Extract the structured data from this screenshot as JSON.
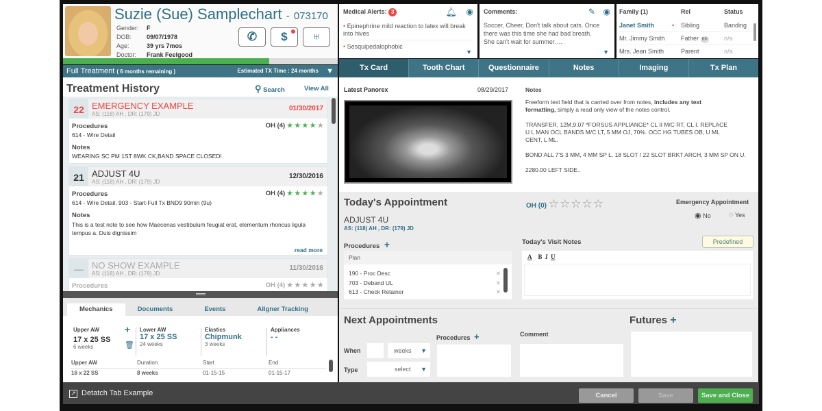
{
  "patient": {
    "name": "Suzie (Sue) Samplechart",
    "id_sep": "-",
    "id": "073170",
    "fields": [
      {
        "label": "Gender:",
        "value": "F"
      },
      {
        "label": "DOB:",
        "value": "09/07/1978"
      },
      {
        "label": "Age:",
        "value": "39 yrs 7mos"
      },
      {
        "label": "Doctor:",
        "value": "Frank  Feelgood"
      }
    ]
  },
  "treatment": {
    "title": "Full Treatment",
    "remaining": "( 6 months remaining )",
    "estimate": "Estimated TX Time : 24 months",
    "progress_pct": 75
  },
  "alerts": {
    "title": "Medical Alerts:",
    "count": "3",
    "items": [
      "Epinephrine mild reaction to  latex will break into hives",
      "Sesquipedalophobic"
    ]
  },
  "comments": {
    "title": "Comments:",
    "text": "Soccer, Cheer, Don't talk about cats. Once there was this time she had bad breath. She can't wait for summer…."
  },
  "family": {
    "headers": [
      "Family (1)",
      "Rel",
      "Status"
    ],
    "rows": [
      {
        "name": "Janet Smith",
        "rel": "Sibling",
        "status": "Banding"
      },
      {
        "name": "Mr. Jimmy Smith",
        "rel": "Father",
        "badge": "RP",
        "status": "n/a"
      },
      {
        "name": "Mrs. Jean Smith",
        "rel": "Parent",
        "status": "n/a"
      }
    ]
  },
  "tabs": [
    "Tx Card",
    "Tooth Chart",
    "Questionnaire",
    "Notes",
    "Imaging",
    "Tx Plan"
  ],
  "history": {
    "title": "Treatment History",
    "search": "Search",
    "view_all": "View All",
    "procedures_label": "Procedures",
    "notes_label": "Notes",
    "read_more": "read more",
    "cards": [
      {
        "num": "22",
        "title": "EMERGENCY EXAMPLE",
        "sub": "AS: (118) AH , DR: (179) JD",
        "date": "01/30/2017",
        "oh": "OH (4)",
        "stars": 4,
        "procedures": "614 - Wire Detail",
        "notes": "WEARING SC PM 1ST 8WK CK,BAND SPACE CLOSED!"
      },
      {
        "num": "21",
        "title": "ADJUST 4U",
        "sub": "AS: (118) AH , DR: (179) JD",
        "date": "12/30/2016",
        "oh": "OH (4)",
        "stars": 4,
        "procedures": "614 - Wire Detail, 903 - Start-Full Tx  BND9 90min (9u)",
        "notes": "This is a test note to see how Maecenas vestibulum feugiat erat, elementum rhoncus ligula tempus a. Duis dignissim"
      },
      {
        "num": "—",
        "title": "NO SHOW EXAMPLE",
        "sub": "AS: (118) AH , DR: (179) JD",
        "date": "11/30/2016",
        "oh": "OH (4)",
        "stars": 0
      }
    ]
  },
  "mechanics": {
    "tabs": [
      "Mechanics",
      "Documents",
      "Events",
      "Aligner Tracking"
    ],
    "upper": {
      "label": "Upper AW",
      "value": "17 x 25 SS",
      "dur": "6 weeks"
    },
    "lower": {
      "label": "Lower AW",
      "value": "17 x 25 SS",
      "dur": "24 weeks"
    },
    "elastics": {
      "label": "Elastics",
      "value": "Chipmunk",
      "dur": "3 weeks"
    },
    "appliances": {
      "label": "Appliances",
      "value": "- -"
    },
    "table": {
      "headers": [
        "Upper AW",
        "Duration",
        "Start",
        "End"
      ],
      "rows": [
        [
          "16 x 22 SS",
          "8 weeks",
          "01-15-15",
          "01-15-17"
        ]
      ]
    }
  },
  "footer": {
    "detach": "Detatch Tab Example",
    "cancel": "Cancel",
    "save": "Save",
    "save_close": "Save and Close"
  },
  "txcard": {
    "panorex_label": "Latest Panorex",
    "panorex_date": "08/29/2017",
    "notes_title": "Notes",
    "notes_intro_1": "Freeform text field that is carried over from notes, ",
    "notes_intro_bold1": "includes any text formatting,",
    "notes_intro_2": " simply a read only view of the notes control.",
    "notes_p1": "TRANSFER, 12M,9.07  *FORSUS APPLIANCE*  CL II M/C RT, CL I. REPLACE U L MAN OCL BANDS  M/C LT, 5 MM OJ, 70%. OCC HG TUBES OB, U ML CENT, L ML.",
    "notes_p2": "BOND ALL 7'S  3 MM, 4 MM SP L. 18 SLOT / 22 SLOT BRKT ARCH, 3 MM SP ON U.",
    "notes_p3": "2280.00 LEFT SIDE.."
  },
  "today": {
    "title": "Today's Appointment",
    "oh": "OH (0)",
    "stars": 0,
    "emergency_label": "Emergency Appointment",
    "no": "No",
    "yes": "Yes",
    "emergency": "No",
    "appt": "ADJUST 4U",
    "sub": "AS: (118) AH , DR: (179) JD",
    "procedures_label": "Procedures",
    "plan_label": "Plan",
    "procedures": [
      "190 - Proc Desc",
      "703 - Deband UL",
      "613 - Check Retainer"
    ],
    "visit_notes_label": "Today's Visit Notes",
    "predefined": "Predefined",
    "fmt": [
      "A",
      "B",
      "I",
      "U"
    ]
  },
  "next": {
    "title": "Next Appointments",
    "when": "When",
    "type": "Type",
    "weeks": "weeks",
    "select": "select",
    "procedures": "Procedures",
    "comment": "Comment",
    "futures": "Futures"
  },
  "colors": {
    "teal": "#3e7486",
    "green": "#4caf50",
    "alert": "#e44444"
  }
}
